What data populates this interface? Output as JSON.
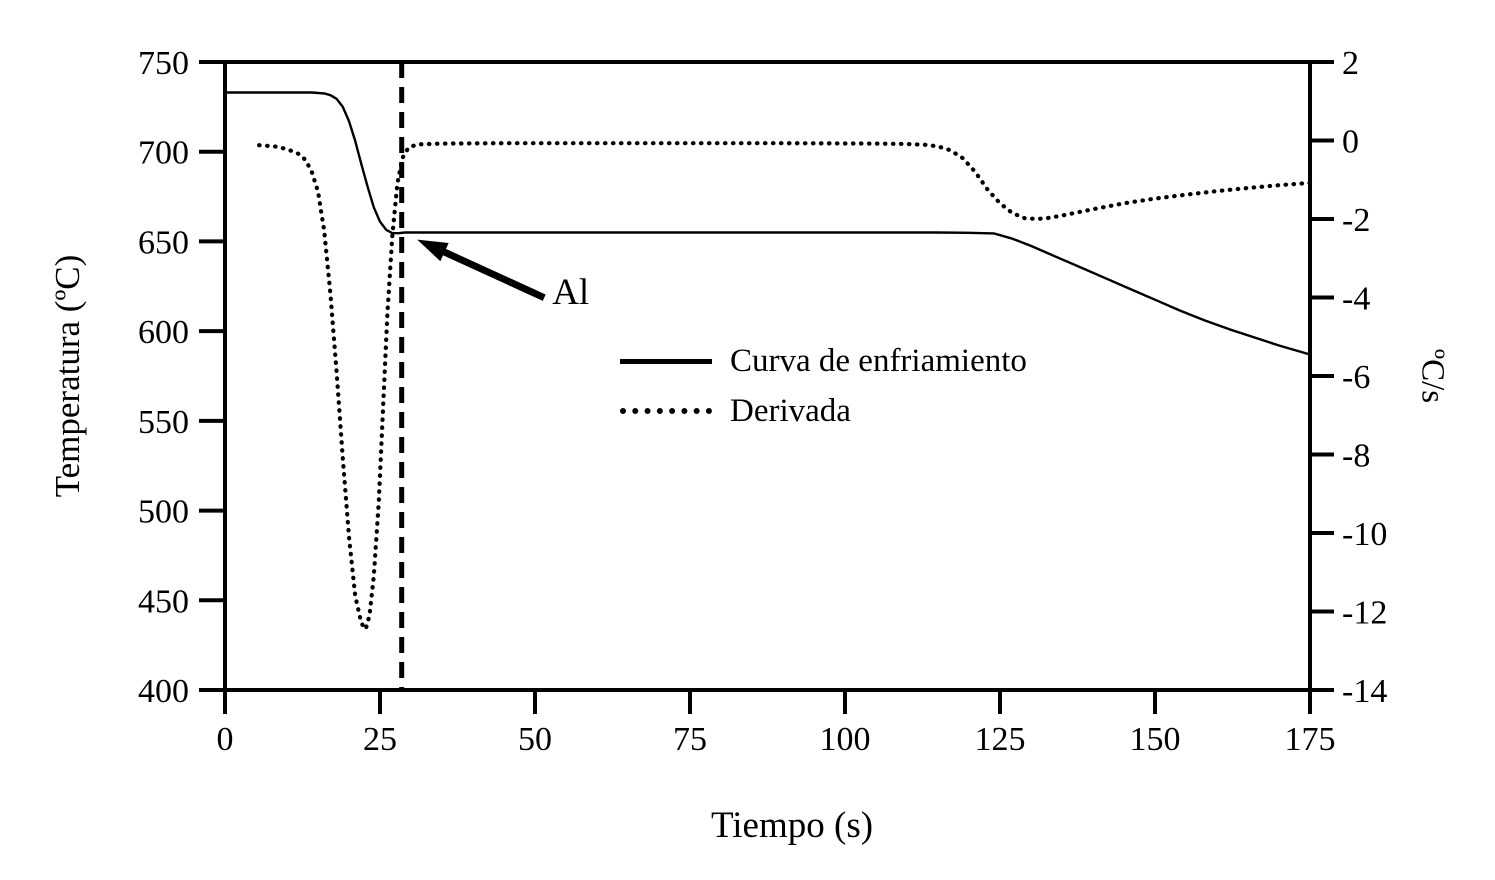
{
  "chart_data": {
    "type": "line",
    "title": "",
    "xlabel": "Tiempo (s)",
    "ylabel_left": "Temperatura (ºC)",
    "ylabel_right": "ºC/s",
    "xlim": [
      0,
      175
    ],
    "xticks": [
      0,
      25,
      50,
      75,
      100,
      125,
      150,
      175
    ],
    "ylim_left": [
      400,
      750
    ],
    "yticks_left": [
      750,
      700,
      650,
      600,
      550,
      500,
      450,
      400
    ],
    "ylim_right": [
      -14,
      2
    ],
    "yticks_right": [
      2,
      0,
      -2,
      -4,
      -6,
      -8,
      -10,
      -12,
      -14
    ],
    "grid": false,
    "legend_position": "center",
    "line_color": "#000000",
    "vline_x": 28.5,
    "annotation": {
      "label": "Al",
      "x": 31,
      "y": 651
    },
    "legend": [
      {
        "label": "Curva de enfriamiento",
        "style": "solid"
      },
      {
        "label": "Derivada",
        "style": "dotted"
      }
    ],
    "series": [
      {
        "name": "Curva de enfriamiento",
        "axis": "left",
        "style": "solid",
        "points": [
          [
            0,
            733
          ],
          [
            14,
            733
          ],
          [
            16,
            732.5
          ],
          [
            17,
            731.5
          ],
          [
            18,
            729.5
          ],
          [
            19,
            725
          ],
          [
            20,
            717
          ],
          [
            21,
            706
          ],
          [
            22,
            693
          ],
          [
            23,
            680.5
          ],
          [
            24,
            669
          ],
          [
            25,
            661
          ],
          [
            26,
            656.5
          ],
          [
            27,
            654.6
          ],
          [
            28,
            654.6
          ],
          [
            29,
            655
          ],
          [
            40,
            655
          ],
          [
            60,
            655
          ],
          [
            80,
            655
          ],
          [
            100,
            655
          ],
          [
            115,
            655
          ],
          [
            120,
            654.8
          ],
          [
            124,
            654.5
          ],
          [
            127,
            651.5
          ],
          [
            130,
            647.5
          ],
          [
            134,
            641.5
          ],
          [
            138,
            635.5
          ],
          [
            142,
            629.5
          ],
          [
            146,
            623.5
          ],
          [
            150,
            617.5
          ],
          [
            154,
            611.5
          ],
          [
            158,
            606
          ],
          [
            162,
            601
          ],
          [
            166,
            596.5
          ],
          [
            170,
            592
          ],
          [
            175,
            587
          ]
        ]
      },
      {
        "name": "Derivada",
        "axis": "right",
        "style": "dotted",
        "points": [
          [
            5.5,
            -0.12
          ],
          [
            8,
            -0.15
          ],
          [
            10,
            -0.22
          ],
          [
            12,
            -0.35
          ],
          [
            13,
            -0.5
          ],
          [
            14,
            -0.8
          ],
          [
            15,
            -1.3
          ],
          [
            16,
            -2.3
          ],
          [
            17,
            -3.9
          ],
          [
            18,
            -5.9
          ],
          [
            19,
            -8.1
          ],
          [
            20,
            -10.1
          ],
          [
            21,
            -11.6
          ],
          [
            22,
            -12.3
          ],
          [
            22.7,
            -12.45
          ],
          [
            23.3,
            -12.1
          ],
          [
            24,
            -11.1
          ],
          [
            24.8,
            -9.2
          ],
          [
            25.5,
            -6.8
          ],
          [
            26.2,
            -4.4
          ],
          [
            27,
            -2.4
          ],
          [
            27.8,
            -1.1
          ],
          [
            28.6,
            -0.45
          ],
          [
            29.6,
            -0.18
          ],
          [
            31,
            -0.1
          ],
          [
            35,
            -0.08
          ],
          [
            45,
            -0.07
          ],
          [
            60,
            -0.07
          ],
          [
            75,
            -0.07
          ],
          [
            90,
            -0.07
          ],
          [
            105,
            -0.08
          ],
          [
            110,
            -0.09
          ],
          [
            113,
            -0.11
          ],
          [
            115,
            -0.15
          ],
          [
            117,
            -0.25
          ],
          [
            119,
            -0.45
          ],
          [
            121,
            -0.8
          ],
          [
            123,
            -1.25
          ],
          [
            125,
            -1.6
          ],
          [
            127,
            -1.85
          ],
          [
            129,
            -1.98
          ],
          [
            131,
            -2.0
          ],
          [
            133,
            -1.97
          ],
          [
            136,
            -1.88
          ],
          [
            140,
            -1.75
          ],
          [
            145,
            -1.6
          ],
          [
            150,
            -1.48
          ],
          [
            155,
            -1.38
          ],
          [
            160,
            -1.29
          ],
          [
            165,
            -1.21
          ],
          [
            170,
            -1.14
          ],
          [
            175,
            -1.08
          ]
        ]
      }
    ]
  }
}
